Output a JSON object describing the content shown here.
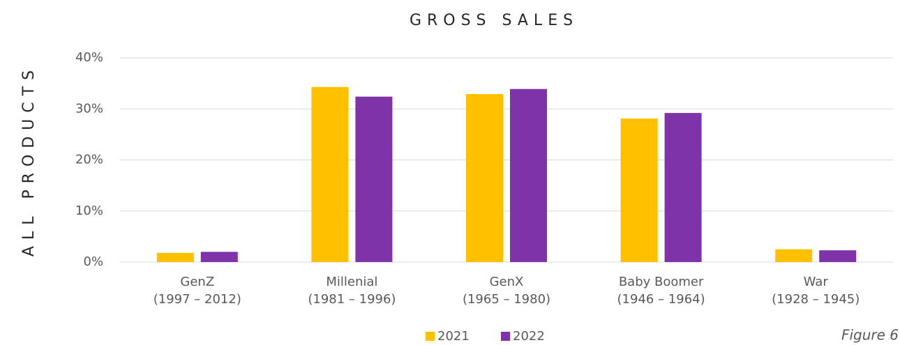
{
  "chart_data": {
    "type": "bar",
    "title": "GROSS SALES",
    "y_label": "ALL PRODUCTS",
    "annotation": "Figure 6",
    "categories": [
      [
        "GenZ",
        "(1997 – 2012)"
      ],
      [
        "Millenial",
        "(1981 – 1996)"
      ],
      [
        "GenX",
        "(1965 – 1980)"
      ],
      [
        "Baby Boomer",
        "(1946 – 1964)"
      ],
      [
        "War",
        "(1928 – 1945)"
      ]
    ],
    "series": [
      {
        "name": "2021",
        "color": "#ffc000",
        "values": [
          1.8,
          34.3,
          32.9,
          28.1,
          2.5
        ]
      },
      {
        "name": "2022",
        "color": "#7f33a8",
        "values": [
          2.0,
          32.4,
          33.9,
          29.2,
          2.3
        ]
      }
    ],
    "ylim": [
      0,
      40
    ],
    "yticks": [
      {
        "value": 0,
        "label": "0%"
      },
      {
        "value": 10,
        "label": "10%"
      },
      {
        "value": 20,
        "label": "20%"
      },
      {
        "value": 30,
        "label": "30%"
      },
      {
        "value": 40,
        "label": "40%"
      }
    ],
    "grid": true,
    "legend": "bottom"
  }
}
